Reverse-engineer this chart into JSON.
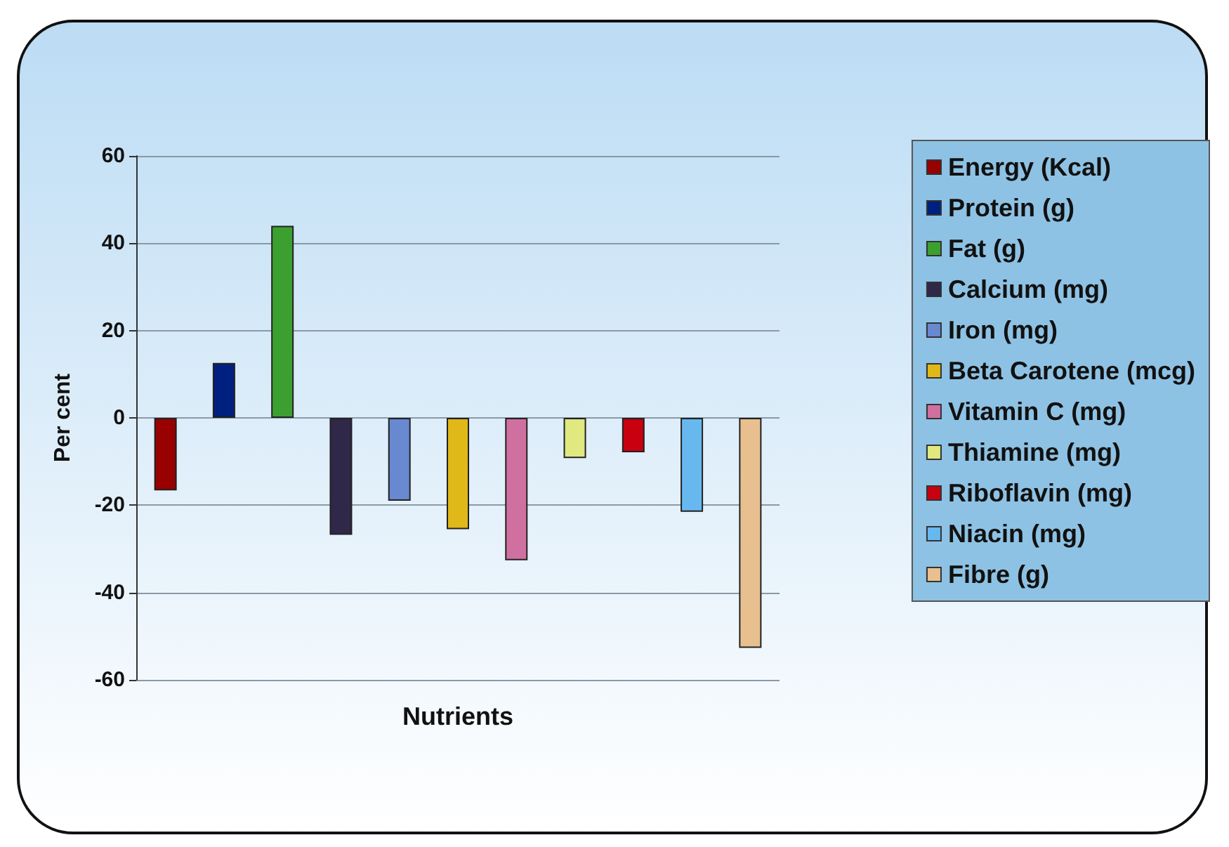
{
  "chart_data": {
    "type": "bar",
    "xlabel": "Nutrients",
    "ylabel": "Per cent",
    "categories": [
      null,
      null,
      null,
      null,
      null,
      null,
      null,
      null,
      null,
      null,
      null
    ],
    "series": [
      {
        "name": "Energy (Kcal)",
        "color": "#990000",
        "values": [
          -16.6,
          null,
          null,
          null,
          null,
          null,
          null,
          null,
          null,
          null,
          null
        ]
      },
      {
        "name": "Protein (g)",
        "color": "#002080",
        "values": [
          null,
          12.6,
          null,
          null,
          null,
          null,
          null,
          null,
          null,
          null,
          null
        ]
      },
      {
        "name": "Fat (g)",
        "color": "#3ca030",
        "values": [
          null,
          null,
          44,
          null,
          null,
          null,
          null,
          null,
          null,
          null,
          null
        ]
      },
      {
        "name": "Calcium (mg)",
        "color": "#302848",
        "values": [
          null,
          null,
          null,
          -26.8,
          null,
          null,
          null,
          null,
          null,
          null,
          null
        ]
      },
      {
        "name": "Iron (mg)",
        "color": "#6888d0",
        "values": [
          null,
          null,
          null,
          null,
          -19,
          null,
          null,
          null,
          null,
          null,
          null
        ]
      },
      {
        "name": "Beta Carotene (mcg)",
        "color": "#e0b818",
        "values": [
          null,
          null,
          null,
          null,
          null,
          -25.5,
          null,
          null,
          null,
          null,
          null
        ]
      },
      {
        "name": "Vitamin C (mg)",
        "color": "#d070a0",
        "values": [
          null,
          null,
          null,
          null,
          null,
          null,
          -32.6,
          null,
          null,
          null,
          null
        ]
      },
      {
        "name": "Thiamine (mg)",
        "color": "#e0e880",
        "values": [
          null,
          null,
          null,
          null,
          null,
          null,
          null,
          -9.2,
          null,
          null,
          null
        ]
      },
      {
        "name": "Riboflavin (mg)",
        "color": "#c80010",
        "values": [
          null,
          null,
          null,
          null,
          null,
          null,
          null,
          null,
          -7.9,
          null,
          null
        ]
      },
      {
        "name": "Niacin (mg)",
        "color": "#68b8f0",
        "values": [
          null,
          null,
          null,
          null,
          null,
          null,
          null,
          null,
          null,
          -21.5,
          null
        ]
      },
      {
        "name": "Fibre (g)",
        "color": "#e8c090",
        "values": [
          null,
          null,
          null,
          null,
          null,
          null,
          null,
          null,
          null,
          null,
          -52.7
        ]
      }
    ],
    "ylim": [
      -60,
      60
    ],
    "yticks": [
      -60,
      -40,
      -20,
      0,
      20,
      40,
      60
    ],
    "grid": "y",
    "legend": "right"
  }
}
